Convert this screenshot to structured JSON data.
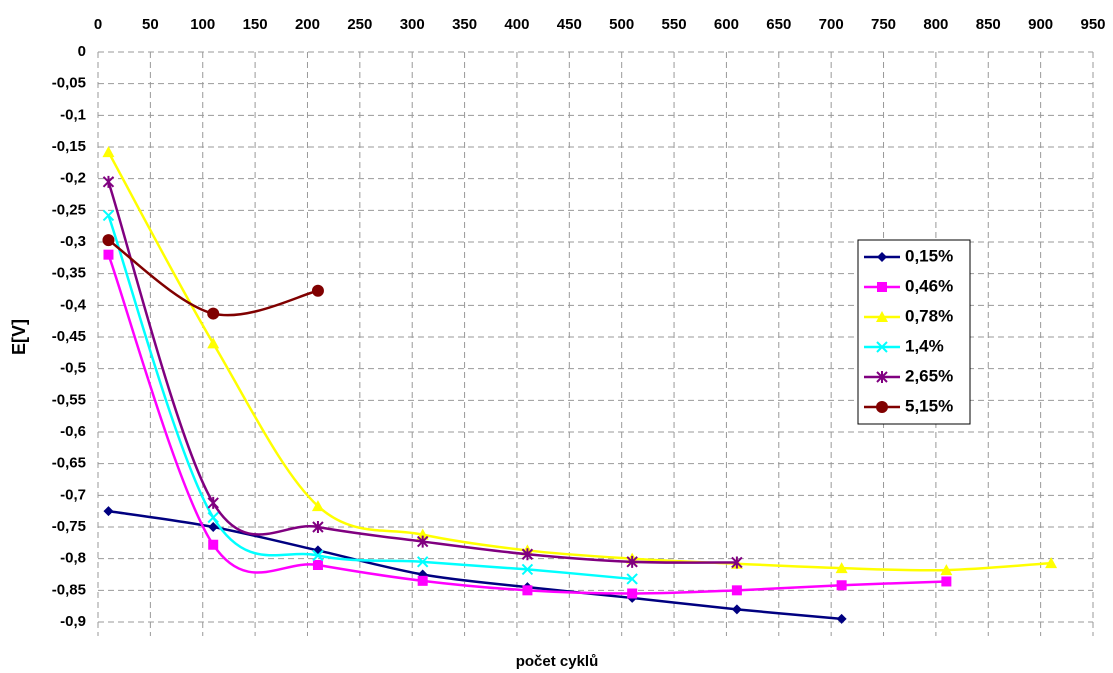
{
  "chart_data": {
    "type": "line",
    "x_label": "počet cyklů",
    "y_label": "E[V]",
    "xlim": [
      0,
      950
    ],
    "xticks": [
      0,
      50,
      100,
      150,
      200,
      250,
      300,
      350,
      400,
      450,
      500,
      550,
      600,
      650,
      700,
      750,
      800,
      850,
      900,
      950
    ],
    "ylim": [
      -0.9,
      0
    ],
    "yticks": [
      0,
      {
        "value": -0.05,
        "label": "-0,05"
      },
      {
        "value": -0.1,
        "label": "-0,1"
      },
      {
        "value": -0.15,
        "label": "-0,15"
      },
      {
        "value": -0.2,
        "label": "-0,2"
      },
      {
        "value": -0.25,
        "label": "-0,25"
      },
      {
        "value": -0.3,
        "label": "-0,3"
      },
      {
        "value": -0.35,
        "label": "-0,35"
      },
      {
        "value": -0.4,
        "label": "-0,4"
      },
      {
        "value": -0.45,
        "label": "-0,45"
      },
      {
        "value": -0.5,
        "label": "-0,5"
      },
      {
        "value": -0.55,
        "label": "-0,55"
      },
      {
        "value": -0.6,
        "label": "-0,6"
      },
      {
        "value": -0.65,
        "label": "-0,65"
      },
      {
        "value": -0.7,
        "label": "-0,7"
      },
      {
        "value": -0.75,
        "label": "-0,75"
      },
      {
        "value": -0.8,
        "label": "-0,8"
      },
      {
        "value": -0.85,
        "label": "-0,85"
      },
      {
        "value": -0.9,
        "label": "-0,9"
      }
    ],
    "grid": true,
    "smooth": true,
    "series": [
      {
        "name": "0,15%",
        "color": "#000080",
        "marker": "diamond",
        "x": [
          10,
          110,
          210,
          310,
          410,
          510,
          610,
          710
        ],
        "values": [
          -0.725,
          -0.75,
          -0.787,
          -0.825,
          -0.845,
          -0.862,
          -0.88,
          -0.895
        ]
      },
      {
        "name": "0,46%",
        "color": "#ff00ff",
        "marker": "square",
        "x": [
          10,
          110,
          210,
          310,
          410,
          510,
          610,
          710,
          810
        ],
        "values": [
          -0.32,
          -0.778,
          -0.81,
          -0.835,
          -0.85,
          -0.855,
          -0.85,
          -0.842,
          -0.836
        ]
      },
      {
        "name": "0,78%",
        "color": "#ffff00",
        "marker": "triangle",
        "x": [
          10,
          110,
          210,
          310,
          410,
          510,
          610,
          710,
          810,
          910
        ],
        "values": [
          -0.158,
          -0.46,
          -0.717,
          -0.762,
          -0.787,
          -0.8,
          -0.808,
          -0.815,
          -0.818,
          -0.807
        ]
      },
      {
        "name": "1,4%",
        "color": "#00ffff",
        "marker": "x",
        "x": [
          10,
          110,
          210,
          310,
          410,
          510
        ],
        "values": [
          -0.258,
          -0.735,
          -0.795,
          -0.805,
          -0.817,
          -0.832
        ]
      },
      {
        "name": "2,65%",
        "color": "#800080",
        "marker": "asterisk",
        "x": [
          10,
          110,
          210,
          310,
          410,
          510,
          610
        ],
        "values": [
          -0.205,
          -0.712,
          -0.75,
          -0.773,
          -0.793,
          -0.805,
          -0.806
        ]
      },
      {
        "name": "5,15%",
        "color": "#800000",
        "marker": "circle",
        "x": [
          10,
          110,
          210
        ],
        "values": [
          -0.297,
          -0.413,
          -0.377
        ]
      }
    ]
  }
}
